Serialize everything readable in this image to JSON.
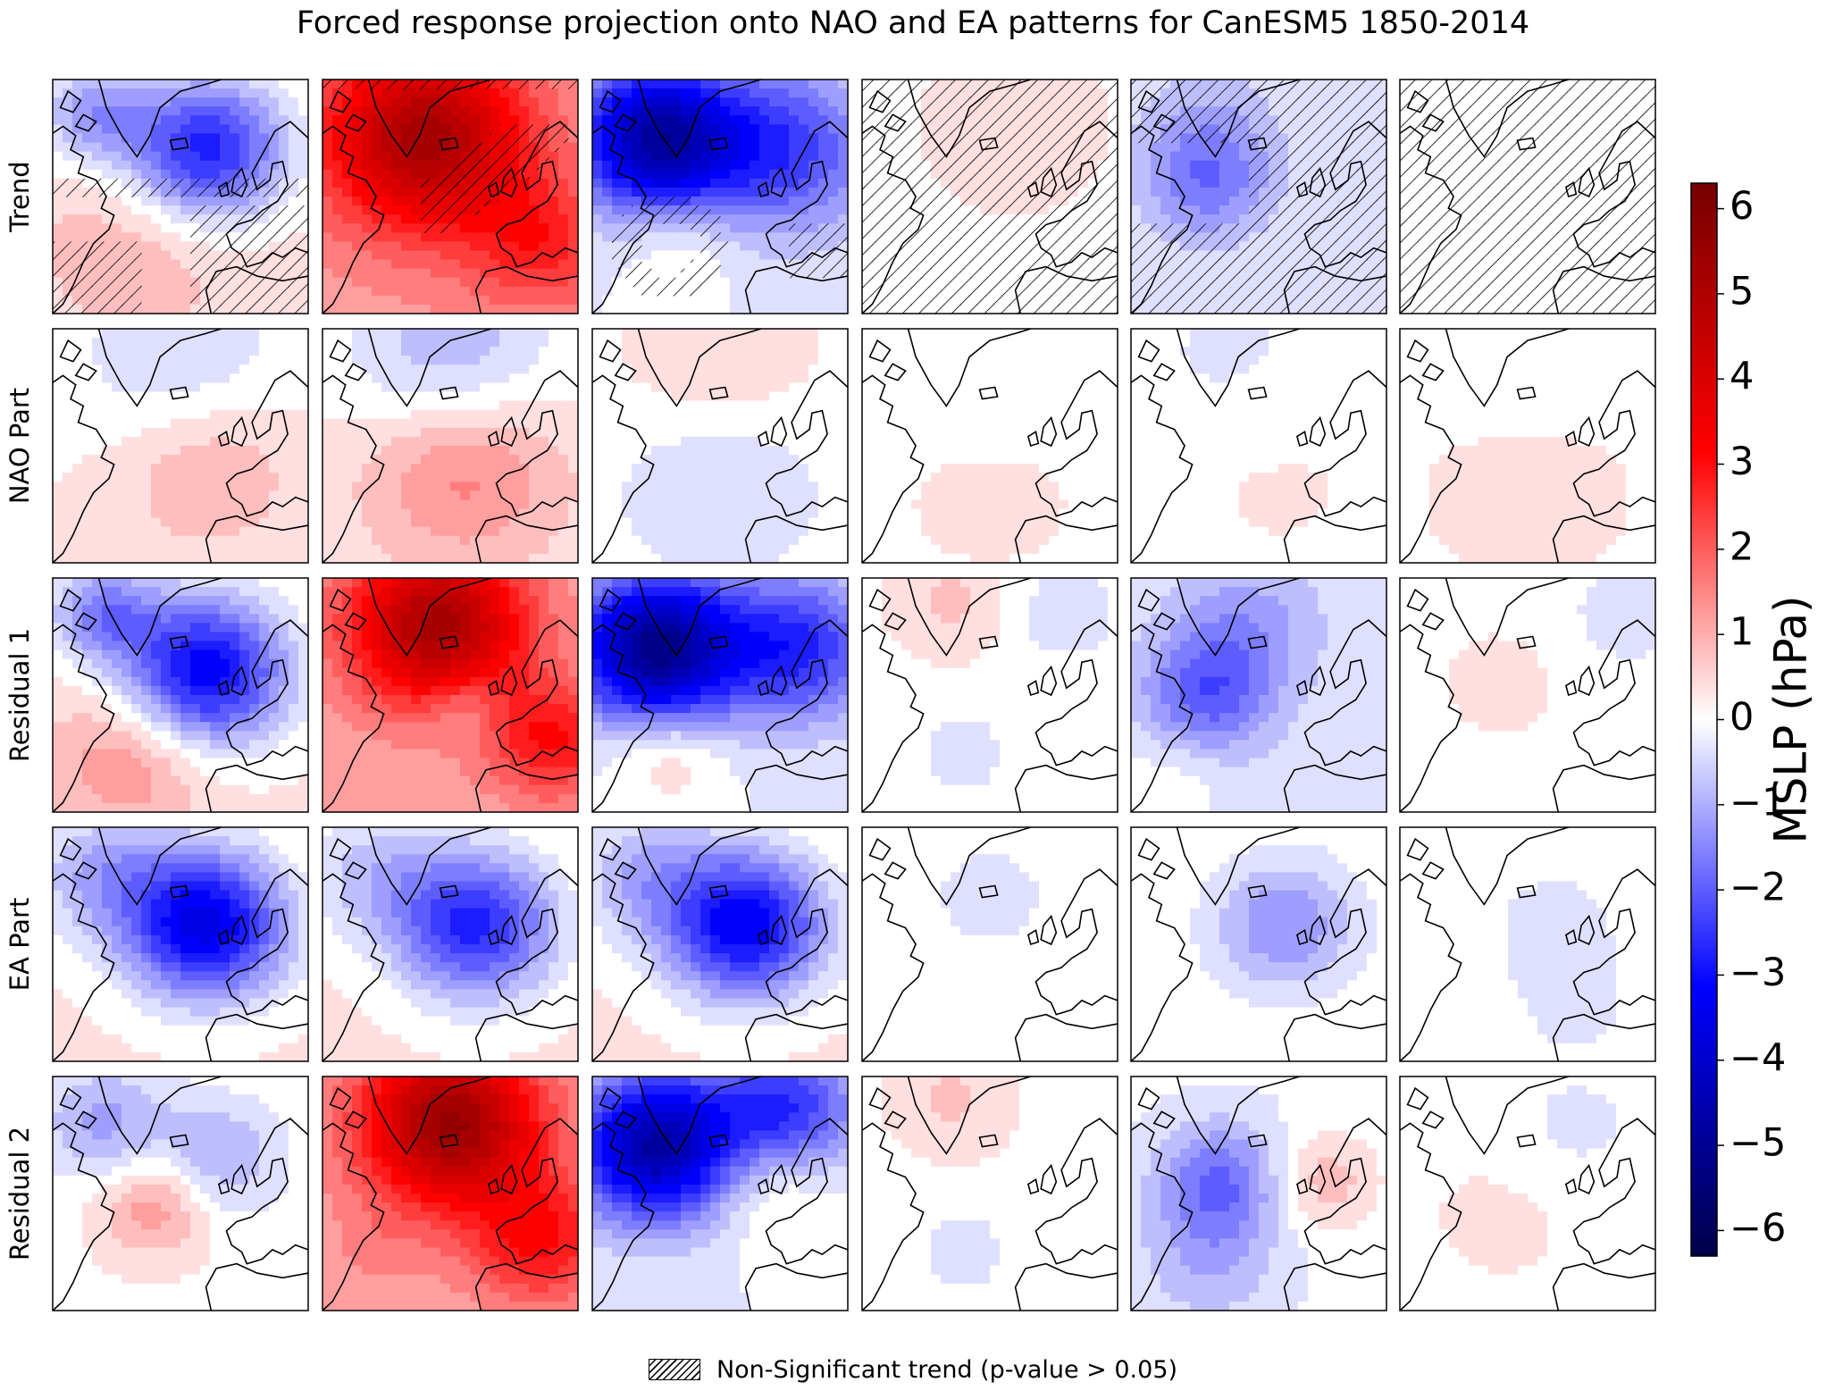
{
  "title": "Forced response projection onto NAO and EA patterns for CanESM5 1850-2014",
  "chart_data": {
    "type": "heatmap",
    "title": "Forced response projection onto NAO and EA patterns for CanESM5 1850-2014",
    "rows": [
      "Trend",
      "NAO Part",
      "Residual 1",
      "EA Part",
      "Residual 2"
    ],
    "n_columns": 6,
    "colorbar": {
      "label": "MSLP (hPa)",
      "range": [
        -6.3,
        6.3
      ],
      "ticks": [
        6,
        5,
        4,
        3,
        2,
        1,
        0,
        -1,
        -2,
        -3,
        -4,
        -5,
        -6
      ],
      "tick_labels": [
        "6",
        "5",
        "4",
        "3",
        "2",
        "1",
        "0",
        "−1",
        "−2",
        "−3",
        "−4",
        "−5",
        "−6"
      ],
      "colormap": "bwr"
    },
    "panels": [
      [
        {
          "base": 0.4,
          "blobs": [
            [
              0.6,
              0.3,
              -3.2,
              0.22
            ],
            [
              0.15,
              0.15,
              -1.5,
              0.15
            ],
            [
              0.35,
              0.7,
              0.6,
              0.25
            ]
          ],
          "hatch": "sw"
        },
        {
          "base": 1.2,
          "blobs": [
            [
              0.4,
              0.25,
              4.0,
              0.28
            ],
            [
              0.85,
              0.7,
              1.5,
              0.2
            ]
          ],
          "hatch": "band"
        },
        {
          "base": -0.2,
          "blobs": [
            [
              0.25,
              0.25,
              -4.5,
              0.22
            ],
            [
              0.75,
              0.3,
              -2.2,
              0.25
            ],
            [
              0.35,
              0.7,
              0.6,
              0.15
            ]
          ],
          "hatch": "ring"
        },
        {
          "base": 0.15,
          "blobs": [
            [
              0.6,
              0.2,
              0.3,
              0.2
            ]
          ],
          "hatch": "all"
        },
        {
          "base": -0.2,
          "blobs": [
            [
              0.3,
              0.45,
              -1.3,
              0.18
            ],
            [
              0.3,
              0.2,
              -0.7,
              0.2
            ]
          ],
          "hatch": "most"
        },
        {
          "base": 0.0,
          "blobs": [],
          "hatch": "all"
        }
      ],
      [
        {
          "base": 0.2,
          "blobs": [
            [
              0.5,
              0.15,
              -0.8,
              0.3
            ],
            [
              0.6,
              0.6,
              0.9,
              0.25
            ]
          ],
          "hatch": "none"
        },
        {
          "base": 0.3,
          "blobs": [
            [
              0.5,
              0.12,
              -1.3,
              0.3
            ],
            [
              0.55,
              0.6,
              1.4,
              0.27
            ]
          ],
          "hatch": "none"
        },
        {
          "base": -0.05,
          "blobs": [
            [
              0.5,
              0.1,
              0.6,
              0.3
            ],
            [
              0.5,
              0.65,
              -0.6,
              0.25
            ]
          ],
          "hatch": "none"
        },
        {
          "base": 0.1,
          "blobs": [
            [
              0.5,
              0.1,
              -0.3,
              0.3
            ],
            [
              0.5,
              0.65,
              0.2,
              0.3
            ]
          ],
          "hatch": "none"
        },
        {
          "base": 0.05,
          "blobs": [
            [
              0.4,
              0.15,
              -0.35,
              0.3
            ],
            [
              0.55,
              0.6,
              0.25,
              0.3
            ]
          ],
          "hatch": "none"
        },
        {
          "base": 0.1,
          "blobs": [
            [
              0.5,
              0.2,
              -0.2,
              0.3
            ],
            [
              0.5,
              0.65,
              0.3,
              0.3
            ]
          ],
          "hatch": "none"
        }
      ],
      [
        {
          "base": 0.3,
          "blobs": [
            [
              0.6,
              0.4,
              -3.6,
              0.22
            ],
            [
              0.2,
              0.15,
              -1.8,
              0.15
            ],
            [
              0.3,
              0.78,
              1.1,
              0.22
            ]
          ],
          "hatch": "none"
        },
        {
          "base": 1.0,
          "blobs": [
            [
              0.45,
              0.2,
              4.2,
              0.25
            ],
            [
              0.55,
              0.55,
              -0.8,
              0.1
            ],
            [
              0.9,
              0.7,
              2.0,
              0.18
            ]
          ],
          "hatch": "none"
        },
        {
          "base": -0.2,
          "blobs": [
            [
              0.25,
              0.3,
              -5.0,
              0.22
            ],
            [
              0.8,
              0.3,
              -2.5,
              0.22
            ],
            [
              0.3,
              0.75,
              0.9,
              0.15
            ]
          ],
          "hatch": "none"
        },
        {
          "base": 0.1,
          "blobs": [
            [
              0.4,
              0.75,
              -0.6,
              0.12
            ],
            [
              0.8,
              0.15,
              -0.6,
              0.15
            ],
            [
              0.35,
              0.1,
              0.6,
              0.15
            ]
          ],
          "hatch": "none"
        },
        {
          "base": -0.3,
          "blobs": [
            [
              0.3,
              0.5,
              -1.7,
              0.18
            ],
            [
              0.45,
              0.2,
              -0.9,
              0.2
            ],
            [
              0.15,
              0.85,
              0.4,
              0.15
            ]
          ],
          "hatch": "none"
        },
        {
          "base": 0.05,
          "blobs": [
            [
              0.4,
              0.45,
              0.4,
              0.15
            ],
            [
              0.9,
              0.15,
              -0.4,
              0.2
            ]
          ],
          "hatch": "none"
        }
      ],
      [
        {
          "base": 0.3,
          "blobs": [
            [
              0.6,
              0.42,
              -3.8,
              0.22
            ],
            [
              0.2,
              0.2,
              -1.3,
              0.2
            ]
          ],
          "hatch": "none"
        },
        {
          "base": 0.3,
          "blobs": [
            [
              0.6,
              0.42,
              -3.0,
              0.22
            ],
            [
              0.2,
              0.2,
              -1.0,
              0.2
            ]
          ],
          "hatch": "none"
        },
        {
          "base": 0.3,
          "blobs": [
            [
              0.6,
              0.42,
              -3.6,
              0.22
            ],
            [
              0.2,
              0.2,
              -1.2,
              0.2
            ]
          ],
          "hatch": "none"
        },
        {
          "base": 0.05,
          "blobs": [
            [
              0.5,
              0.3,
              -0.3,
              0.3
            ]
          ],
          "hatch": "none"
        },
        {
          "base": 0.1,
          "blobs": [
            [
              0.6,
              0.42,
              -1.5,
              0.2
            ]
          ],
          "hatch": "none"
        },
        {
          "base": 0.05,
          "blobs": [
            [
              0.6,
              0.42,
              -0.3,
              0.3
            ],
            [
              0.7,
              0.85,
              -0.2,
              0.2
            ]
          ],
          "hatch": "none"
        }
      ],
      [
        {
          "base": 0.1,
          "blobs": [
            [
              0.4,
              0.55,
              1.3,
              0.15
            ],
            [
              0.65,
              0.35,
              -1.1,
              0.18
            ],
            [
              0.2,
              0.2,
              -1.2,
              0.18
            ]
          ],
          "hatch": "none"
        },
        {
          "base": 1.0,
          "blobs": [
            [
              0.5,
              0.2,
              4.5,
              0.25
            ],
            [
              0.85,
              0.7,
              2.0,
              0.2
            ],
            [
              0.2,
              0.75,
              0.4,
              0.15
            ]
          ],
          "hatch": "none"
        },
        {
          "base": -0.2,
          "blobs": [
            [
              0.25,
              0.3,
              -4.5,
              0.22
            ],
            [
              0.75,
              0.15,
              -2.5,
              0.2
            ],
            [
              0.7,
              0.45,
              0.9,
              0.18
            ]
          ],
          "hatch": "none"
        },
        {
          "base": 0.1,
          "blobs": [
            [
              0.4,
              0.75,
              -0.6,
              0.12
            ],
            [
              0.35,
              0.1,
              0.6,
              0.15
            ]
          ],
          "hatch": "none"
        },
        {
          "base": -0.1,
          "blobs": [
            [
              0.35,
              0.45,
              -1.7,
              0.18
            ],
            [
              0.75,
              0.45,
              1.0,
              0.15
            ],
            [
              0.3,
              0.8,
              -0.8,
              0.2
            ]
          ],
          "hatch": "none"
        },
        {
          "base": 0.1,
          "blobs": [
            [
              0.7,
              0.2,
              -0.4,
              0.2
            ],
            [
              0.4,
              0.6,
              0.2,
              0.2
            ]
          ],
          "hatch": "none"
        }
      ]
    ]
  },
  "legend": {
    "hatch_label": "Non-Significant trend (p-value > 0.05)"
  }
}
